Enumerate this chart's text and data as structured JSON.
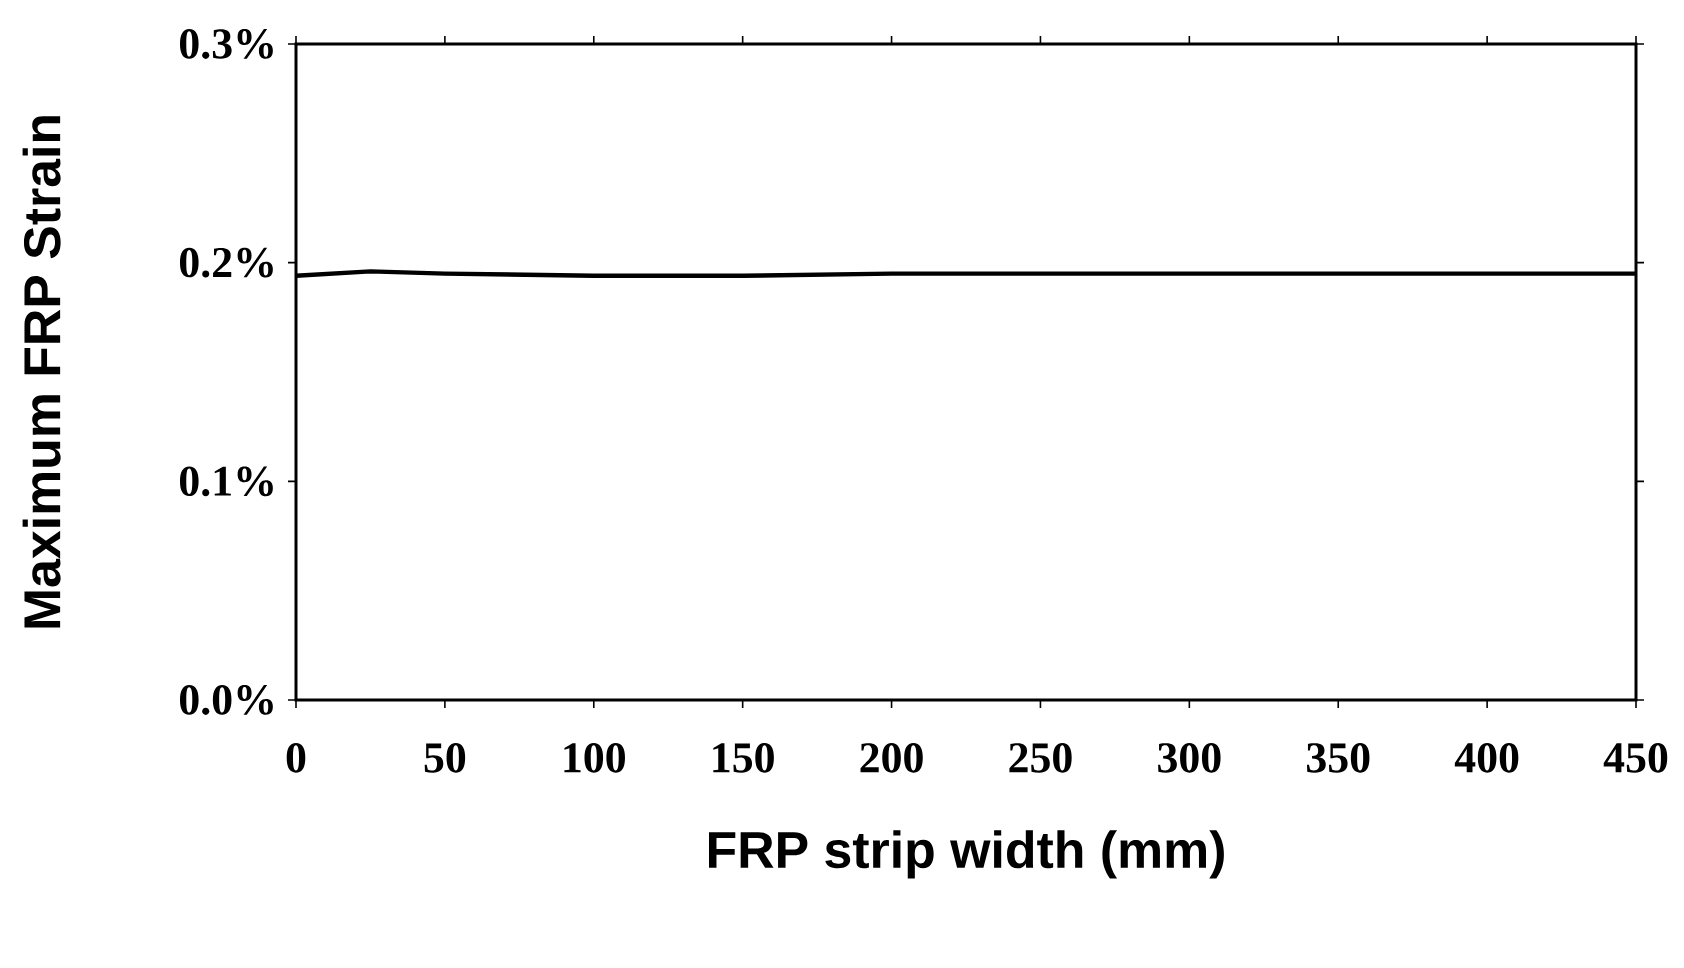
{
  "chart_data": {
    "type": "line",
    "xlabel": "FRP strip width (mm)",
    "ylabel": "Maximum FRP Strain",
    "x": [
      0,
      25,
      50,
      100,
      150,
      200,
      250,
      300,
      350,
      400,
      450
    ],
    "series": [
      {
        "color": "#000000",
        "values": [
          0.194,
          0.196,
          0.195,
          0.194,
          0.194,
          0.195,
          0.195,
          0.195,
          0.195,
          0.195,
          0.195
        ]
      }
    ],
    "xlim": [
      0,
      450
    ],
    "xticks": [
      0,
      50,
      100,
      150,
      200,
      250,
      300,
      350,
      400,
      450
    ],
    "ylim": [
      0,
      0.3
    ],
    "yticks": [
      {
        "value": 0,
        "label": "0.0%"
      },
      {
        "value": 0.1,
        "label": "0.1%"
      },
      {
        "value": 0.2,
        "label": "0.2%"
      },
      {
        "value": 0.3,
        "label": "0.3%"
      }
    ],
    "grid": false,
    "marker": "none",
    "line_style": "solid"
  }
}
